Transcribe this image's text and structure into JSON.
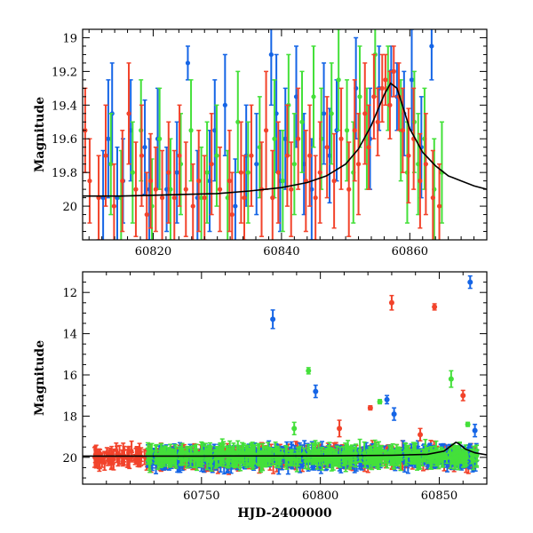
{
  "chart_data": [
    {
      "type": "scatter",
      "title": "",
      "xlabel": "",
      "ylabel": "Magnitude",
      "xlim": [
        60809,
        60872
      ],
      "ylim": [
        20.2,
        18.95
      ],
      "y_inverted": true,
      "grid": false,
      "x_ticks": [
        60820,
        60840,
        60860
      ],
      "y_ticks": [
        19,
        19.2,
        19.4,
        19.6,
        19.8,
        20
      ],
      "y_tick_labels": [
        "19",
        "19.2",
        "19.4",
        "19.6",
        "19.8",
        "20"
      ],
      "colors": {
        "blue": "#1565e6",
        "green": "#44e03a",
        "red": "#f2432b",
        "model": "#000000"
      },
      "series": [
        {
          "color": "blue",
          "points": [
            [
              60812.2,
              19.95,
              0.28
            ],
            [
              60813.0,
              19.6,
              0.35
            ],
            [
              60813.6,
              19.45,
              0.3
            ],
            [
              60814.4,
              19.95,
              0.3
            ],
            [
              60815.3,
              19.85,
              0.25
            ],
            [
              60816.5,
              19.55,
              0.3
            ],
            [
              60818.7,
              19.65,
              0.28
            ],
            [
              60819.4,
              19.9,
              0.3
            ],
            [
              60820.7,
              19.6,
              0.3
            ],
            [
              60822.1,
              19.9,
              0.25
            ],
            [
              60823.7,
              19.8,
              0.3
            ],
            [
              60825.4,
              19.15,
              0.1
            ],
            [
              60826.9,
              19.95,
              0.28
            ],
            [
              60828.8,
              19.85,
              0.3
            ],
            [
              60829.6,
              19.55,
              0.3
            ],
            [
              60831.2,
              19.4,
              0.3
            ],
            [
              60832.8,
              20.0,
              0.28
            ],
            [
              60834.5,
              19.7,
              0.3
            ],
            [
              60836.1,
              19.75,
              0.3
            ],
            [
              60838.4,
              19.1,
              0.3
            ],
            [
              60839.2,
              19.45,
              0.35
            ],
            [
              60839.8,
              19.85,
              0.3
            ],
            [
              60840.6,
              19.6,
              0.3
            ],
            [
              60842.3,
              19.35,
              0.3
            ],
            [
              60843.5,
              19.75,
              0.3
            ],
            [
              60844.7,
              19.9,
              0.3
            ],
            [
              60846.6,
              19.45,
              0.3
            ],
            [
              60847.5,
              19.7,
              0.28
            ],
            [
              60848.6,
              19.55,
              0.3
            ],
            [
              60851.6,
              19.3,
              0.3
            ],
            [
              60853.8,
              19.6,
              0.3
            ],
            [
              60855.2,
              19.3,
              0.25
            ],
            [
              60857.1,
              19.2,
              0.15
            ],
            [
              60858.0,
              19.35,
              0.2
            ],
            [
              60859.1,
              19.45,
              0.25
            ],
            [
              60860.3,
              19.25,
              0.3
            ],
            [
              60861.8,
              19.65,
              0.3
            ],
            [
              60863.4,
              19.05,
              0.2
            ]
          ]
        },
        {
          "color": "green",
          "points": [
            [
              60813.4,
              19.75,
              0.3
            ],
            [
              60815.0,
              19.95,
              0.28
            ],
            [
              60816.8,
              19.8,
              0.3
            ],
            [
              60818.1,
              19.55,
              0.3
            ],
            [
              60819.8,
              20.0,
              0.28
            ],
            [
              60821.0,
              19.6,
              0.3
            ],
            [
              60822.7,
              19.9,
              0.3
            ],
            [
              60824.3,
              19.75,
              0.3
            ],
            [
              60825.9,
              19.55,
              0.3
            ],
            [
              60827.5,
              19.95,
              0.3
            ],
            [
              60828.4,
              19.8,
              0.3
            ],
            [
              60829.9,
              19.7,
              0.3
            ],
            [
              60831.6,
              19.95,
              0.28
            ],
            [
              60833.2,
              19.5,
              0.3
            ],
            [
              60834.8,
              19.8,
              0.3
            ],
            [
              60836.6,
              19.65,
              0.3
            ],
            [
              60838.9,
              19.6,
              0.35
            ],
            [
              60840.2,
              19.85,
              0.3
            ],
            [
              60841.1,
              19.4,
              0.3
            ],
            [
              60842.0,
              19.75,
              0.3
            ],
            [
              60843.2,
              19.5,
              0.3
            ],
            [
              60845.0,
              19.35,
              0.3
            ],
            [
              60846.2,
              19.6,
              0.3
            ],
            [
              60847.8,
              19.45,
              0.3
            ],
            [
              60848.9,
              19.25,
              0.3
            ],
            [
              60850.2,
              19.55,
              0.3
            ],
            [
              60851.2,
              19.8,
              0.3
            ],
            [
              60852.2,
              19.35,
              0.3
            ],
            [
              60853.3,
              19.6,
              0.3
            ],
            [
              60854.6,
              19.1,
              0.25
            ],
            [
              60856.6,
              19.3,
              0.25
            ],
            [
              60858.6,
              19.55,
              0.3
            ],
            [
              60859.6,
              19.8,
              0.3
            ],
            [
              60860.7,
              19.5,
              0.3
            ],
            [
              60861.3,
              19.75,
              0.3
            ],
            [
              60862.3,
              19.6,
              0.3
            ],
            [
              60863.8,
              19.9,
              0.3
            ],
            [
              60865.0,
              19.8,
              0.3
            ]
          ]
        },
        {
          "color": "red",
          "points": [
            [
              60809.4,
              19.55,
              0.25
            ],
            [
              60810.1,
              19.85,
              0.25
            ],
            [
              60811.5,
              19.95,
              0.25
            ],
            [
              60812.6,
              19.7,
              0.3
            ],
            [
              60813.9,
              20.0,
              0.25
            ],
            [
              60815.2,
              19.85,
              0.3
            ],
            [
              60816.2,
              19.45,
              0.3
            ],
            [
              60817.3,
              19.9,
              0.28
            ],
            [
              60818.2,
              19.7,
              0.3
            ],
            [
              60819.0,
              20.05,
              0.25
            ],
            [
              60819.6,
              19.85,
              0.28
            ],
            [
              60820.4,
              19.9,
              0.25
            ],
            [
              60821.4,
              19.95,
              0.28
            ],
            [
              60822.4,
              19.8,
              0.3
            ],
            [
              60823.3,
              19.95,
              0.28
            ],
            [
              60824.1,
              19.7,
              0.3
            ],
            [
              60825.1,
              19.9,
              0.28
            ],
            [
              60826.2,
              20.0,
              0.25
            ],
            [
              60827.1,
              19.85,
              0.3
            ],
            [
              60828.0,
              19.95,
              0.25
            ],
            [
              60829.1,
              19.75,
              0.3
            ],
            [
              60830.4,
              19.9,
              0.25
            ],
            [
              60831.9,
              19.85,
              0.3
            ],
            [
              60832.3,
              20.05,
              0.25
            ],
            [
              60833.7,
              19.8,
              0.3
            ],
            [
              60834.2,
              19.95,
              0.25
            ],
            [
              60835.3,
              19.7,
              0.3
            ],
            [
              60836.9,
              19.9,
              0.28
            ],
            [
              60837.6,
              19.55,
              0.35
            ],
            [
              60838.6,
              19.95,
              0.28
            ],
            [
              60839.5,
              19.8,
              0.3
            ],
            [
              60840.9,
              19.7,
              0.3
            ],
            [
              60841.5,
              19.9,
              0.28
            ],
            [
              60842.6,
              19.6,
              0.3
            ],
            [
              60843.8,
              19.85,
              0.3
            ],
            [
              60844.4,
              19.7,
              0.3
            ],
            [
              60845.3,
              19.95,
              0.25
            ],
            [
              60846.0,
              19.8,
              0.3
            ],
            [
              60847.1,
              19.65,
              0.3
            ],
            [
              60848.2,
              19.85,
              0.28
            ],
            [
              60849.3,
              19.6,
              0.3
            ],
            [
              60850.5,
              19.9,
              0.28
            ],
            [
              60851.4,
              19.55,
              0.3
            ],
            [
              60852.0,
              19.75,
              0.3
            ],
            [
              60853.0,
              19.45,
              0.3
            ],
            [
              60853.6,
              19.65,
              0.25
            ],
            [
              60854.4,
              19.35,
              0.25
            ],
            [
              60855.0,
              19.5,
              0.2
            ],
            [
              60855.7,
              19.3,
              0.2
            ],
            [
              60856.2,
              19.25,
              0.15
            ],
            [
              60856.9,
              19.4,
              0.2
            ],
            [
              60857.5,
              19.2,
              0.15
            ],
            [
              60858.3,
              19.35,
              0.2
            ],
            [
              60858.9,
              19.55,
              0.25
            ],
            [
              60859.8,
              19.7,
              0.28
            ],
            [
              60860.6,
              19.6,
              0.3
            ],
            [
              60861.6,
              19.85,
              0.28
            ],
            [
              60862.5,
              19.75,
              0.3
            ],
            [
              60863.6,
              19.95,
              0.28
            ],
            [
              60864.6,
              20.0,
              0.25
            ]
          ]
        }
      ],
      "model_curve": {
        "x": [
          60809,
          60815,
          60820,
          60825,
          60830,
          60835,
          60840,
          60844,
          60847,
          60850,
          60852,
          60854,
          60856,
          60857,
          60858,
          60859,
          60860,
          60862,
          60864,
          60866,
          60868,
          60870,
          60872
        ],
        "y": [
          19.94,
          19.94,
          19.935,
          19.93,
          19.925,
          19.91,
          19.89,
          19.86,
          19.82,
          19.75,
          19.66,
          19.52,
          19.34,
          19.27,
          19.3,
          19.42,
          19.54,
          19.68,
          19.76,
          19.82,
          19.85,
          19.88,
          19.9
        ]
      }
    },
    {
      "type": "scatter",
      "title": "",
      "xlabel": "HJD-2400000",
      "ylabel": "Magnitude",
      "xlim": [
        60700,
        60870
      ],
      "ylim": [
        21.3,
        11.0
      ],
      "y_inverted": true,
      "grid": false,
      "x_ticks": [
        60750,
        60800,
        60850
      ],
      "y_ticks": [
        12,
        14,
        16,
        18,
        20
      ],
      "y_tick_labels": [
        "12",
        "14",
        "16",
        "18",
        "20"
      ],
      "colors": {
        "blue": "#1565e6",
        "green": "#44e03a",
        "red": "#f2432b",
        "model": "#000000"
      },
      "outliers": [
        {
          "color": "blue",
          "x": 60780,
          "y": 13.3,
          "err": 0.45
        },
        {
          "color": "blue",
          "x": 60798,
          "y": 16.8,
          "err": 0.3
        },
        {
          "color": "blue",
          "x": 60828,
          "y": 17.2,
          "err": 0.2
        },
        {
          "color": "blue",
          "x": 60831,
          "y": 17.9,
          "err": 0.3
        },
        {
          "color": "blue",
          "x": 60863,
          "y": 11.5,
          "err": 0.3
        },
        {
          "color": "blue",
          "x": 60865,
          "y": 18.7,
          "err": 0.3
        },
        {
          "color": "green",
          "x": 60795,
          "y": 15.8,
          "err": 0.15
        },
        {
          "color": "green",
          "x": 60825,
          "y": 17.3,
          "err": 0.1
        },
        {
          "color": "green",
          "x": 60855,
          "y": 16.2,
          "err": 0.4
        },
        {
          "color": "green",
          "x": 60862,
          "y": 18.4,
          "err": 0.1
        },
        {
          "color": "green",
          "x": 60789,
          "y": 18.6,
          "err": 0.3
        },
        {
          "color": "red",
          "x": 60830,
          "y": 12.5,
          "err": 0.35
        },
        {
          "color": "red",
          "x": 60848,
          "y": 12.7,
          "err": 0.15
        },
        {
          "color": "red",
          "x": 60860,
          "y": 17.0,
          "err": 0.25
        },
        {
          "color": "red",
          "x": 60821,
          "y": 17.6,
          "err": 0.1
        },
        {
          "color": "red",
          "x": 60808,
          "y": 18.6,
          "err": 0.4
        },
        {
          "color": "red",
          "x": 60842,
          "y": 18.9,
          "err": 0.3
        }
      ],
      "model_curve": {
        "x": [
          60700,
          60750,
          60800,
          60830,
          60845,
          60852,
          60856,
          60857,
          60858,
          60861,
          60865,
          60870
        ],
        "y": [
          19.94,
          19.94,
          19.93,
          19.9,
          19.85,
          19.7,
          19.35,
          19.27,
          19.32,
          19.6,
          19.78,
          19.88
        ]
      },
      "bulk": [
        {
          "color": "red",
          "x_range": [
            60705,
            60866
          ],
          "center": 20.0
        },
        {
          "color": "blue",
          "x_range": [
            60727,
            60866
          ],
          "center": 20.0
        },
        {
          "color": "green",
          "x_range": [
            60727,
            60866
          ],
          "center": 19.95
        }
      ]
    }
  ]
}
